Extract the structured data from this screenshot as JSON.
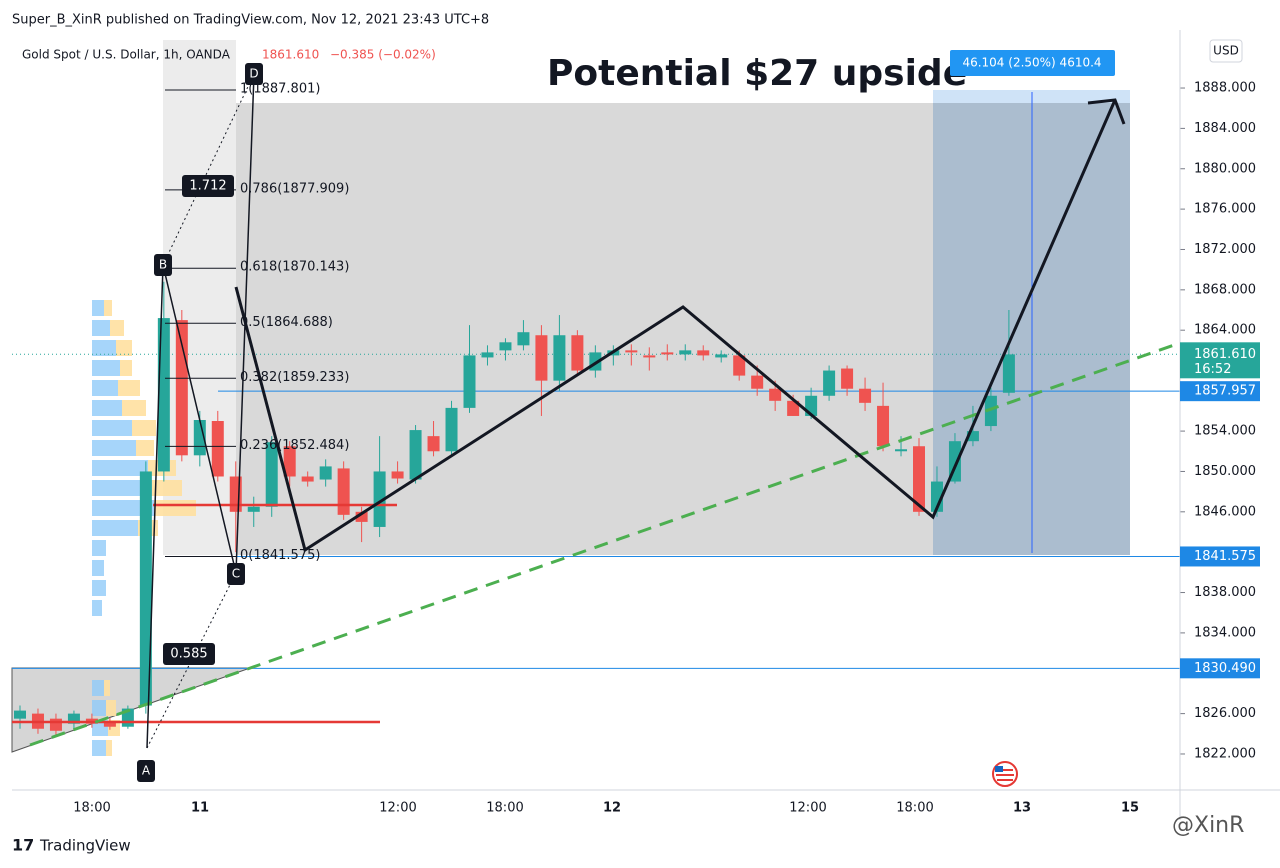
{
  "header": {
    "publisher": "Super_B_XinR published on TradingView.com, Nov 12, 2021 23:43 UTC+8"
  },
  "symbol": {
    "name": "Gold Spot / U.S. Dollar, 1h, OANDA",
    "quote": "1861.610",
    "change": "−0.385 (−0.02%)"
  },
  "annotation": "Potential $27 upside",
  "measure": "46.104 (2.50%) 4610.4",
  "points": [
    "A",
    "B",
    "C",
    "D"
  ],
  "ratios": [
    "1.712",
    "0.585"
  ],
  "chart_data": {
    "type": "candlestick",
    "currency": "USD",
    "candles": [
      [
        1825.5,
        1826.8,
        1824.5,
        1826.3
      ],
      [
        1826,
        1826.5,
        1824,
        1824.5
      ],
      [
        1825.5,
        1826,
        1823.8,
        1824.3
      ],
      [
        1825,
        1826.3,
        1824.5,
        1826
      ],
      [
        1825.5,
        1826,
        1824.6,
        1825
      ],
      [
        1825.2,
        1825.6,
        1824.4,
        1824.7
      ],
      [
        1824.7,
        1826.8,
        1824.5,
        1826.5
      ],
      [
        1826.8,
        1851,
        1826,
        1850
      ],
      [
        1850,
        1868.8,
        1849,
        1865.2
      ],
      [
        1865,
        1866,
        1851,
        1851.6
      ],
      [
        1851.6,
        1856,
        1850.5,
        1855.1
      ],
      [
        1855,
        1856,
        1849,
        1849.5
      ],
      [
        1849.5,
        1851,
        1842,
        1846
      ],
      [
        1846,
        1847.5,
        1844.5,
        1846.5
      ],
      [
        1846.5,
        1853.5,
        1845.5,
        1852.9
      ],
      [
        1852.5,
        1853,
        1848.5,
        1849.5
      ],
      [
        1849.5,
        1850,
        1848.5,
        1849
      ],
      [
        1849.2,
        1851.2,
        1848.5,
        1850.5
      ],
      [
        1850.3,
        1851,
        1845.2,
        1845.7
      ],
      [
        1846,
        1846.5,
        1843,
        1845
      ],
      [
        1844.5,
        1853.5,
        1843.5,
        1850
      ],
      [
        1850,
        1851,
        1848.8,
        1849.3
      ],
      [
        1849.2,
        1854.6,
        1848.8,
        1854.1
      ],
      [
        1853.5,
        1855,
        1851.5,
        1852
      ],
      [
        1852,
        1857,
        1851.5,
        1856.3
      ],
      [
        1856.3,
        1864.5,
        1855.8,
        1861.5
      ],
      [
        1861.3,
        1862.5,
        1860.5,
        1861.8
      ],
      [
        1862,
        1863.2,
        1861,
        1862.8
      ],
      [
        1862.5,
        1865,
        1862,
        1863.8
      ],
      [
        1863.5,
        1864.5,
        1855.5,
        1859
      ],
      [
        1859,
        1865.5,
        1858,
        1863.5
      ],
      [
        1863.5,
        1864,
        1859.5,
        1860
      ],
      [
        1860,
        1862.5,
        1859.3,
        1861.8
      ],
      [
        1861.5,
        1862.5,
        1860.5,
        1862
      ],
      [
        1862,
        1862.6,
        1860.5,
        1861.8
      ],
      [
        1861.5,
        1862.3,
        1860,
        1861.3
      ],
      [
        1861.8,
        1862.6,
        1861,
        1861.6
      ],
      [
        1861.6,
        1862.6,
        1861,
        1862
      ],
      [
        1862,
        1862.5,
        1861,
        1861.5
      ],
      [
        1861.3,
        1862,
        1860.8,
        1861.6
      ],
      [
        1861.5,
        1862,
        1859,
        1859.5
      ],
      [
        1859.5,
        1860.5,
        1857.5,
        1858.2
      ],
      [
        1858.2,
        1859,
        1856,
        1857
      ],
      [
        1857,
        1857.6,
        1855.5,
        1855.5
      ],
      [
        1855.5,
        1858.3,
        1855.2,
        1857.5
      ],
      [
        1857.5,
        1860.5,
        1857,
        1860
      ],
      [
        1860.2,
        1860.5,
        1857.5,
        1858.2
      ],
      [
        1858.2,
        1859.3,
        1856,
        1856.8
      ],
      [
        1856.5,
        1858.8,
        1852,
        1852.5
      ],
      [
        1852,
        1853.5,
        1851.5,
        1852.2
      ],
      [
        1852.5,
        1853.3,
        1845.6,
        1846
      ],
      [
        1846,
        1850.5,
        1845.5,
        1849
      ],
      [
        1849,
        1853.8,
        1848.8,
        1853
      ],
      [
        1853,
        1856.5,
        1852.5,
        1854
      ],
      [
        1854.5,
        1858.3,
        1854,
        1857.5
      ],
      [
        1857.8,
        1866,
        1857.5,
        1861.6
      ]
    ],
    "ylim": [
      1818.43,
      1892.76
    ],
    "yticks": [
      {
        "value": 1888,
        "label": "1888.000"
      },
      {
        "value": 1884,
        "label": "1884.000"
      },
      {
        "value": 1880,
        "label": "1880.000"
      },
      {
        "value": 1876,
        "label": "1876.000"
      },
      {
        "value": 1872,
        "label": "1872.000"
      },
      {
        "value": 1868,
        "label": "1868.000"
      },
      {
        "value": 1864,
        "label": "1864.000"
      },
      {
        "value": 1854,
        "label": "1854.000"
      },
      {
        "value": 1850,
        "label": "1850.000"
      },
      {
        "value": 1846,
        "label": "1846.000"
      },
      {
        "value": 1838,
        "label": "1838.000"
      },
      {
        "value": 1834,
        "label": "1834.000"
      },
      {
        "value": 1826,
        "label": "1826.000"
      },
      {
        "value": 1822,
        "label": "1822.000"
      }
    ],
    "xticks": [
      "18:00",
      "11",
      "12:00",
      "18:00",
      "12",
      "12:00",
      "18:00",
      "13",
      "15"
    ],
    "fib": [
      {
        "value": 1887.801,
        "label": "1(1887.801)"
      },
      {
        "value": 1877.909,
        "label": "0.786(1877.909)"
      },
      {
        "value": 1870.143,
        "label": "0.618(1870.143)"
      },
      {
        "value": 1864.688,
        "label": "0.5(1864.688)"
      },
      {
        "value": 1859.233,
        "label": "0.382(1859.233)"
      },
      {
        "value": 1852.484,
        "label": "0.236(1852.484)"
      },
      {
        "value": 1841.575,
        "label": "0(1841.575)"
      }
    ],
    "price_lines": [
      {
        "value": 1857.957,
        "label": "1857.957"
      },
      {
        "value": 1841.575,
        "label": "1841.575"
      },
      {
        "value": 1830.49,
        "label": "1830.490"
      }
    ],
    "last_price": {
      "value": 1861.61,
      "label": "1861.610"
    },
    "countdown": "16:52",
    "colors": {
      "up": "#26a69a",
      "down": "#ef5350",
      "line": "#1e88e5"
    }
  },
  "footer": "TradingView",
  "watermark": "@XinR"
}
